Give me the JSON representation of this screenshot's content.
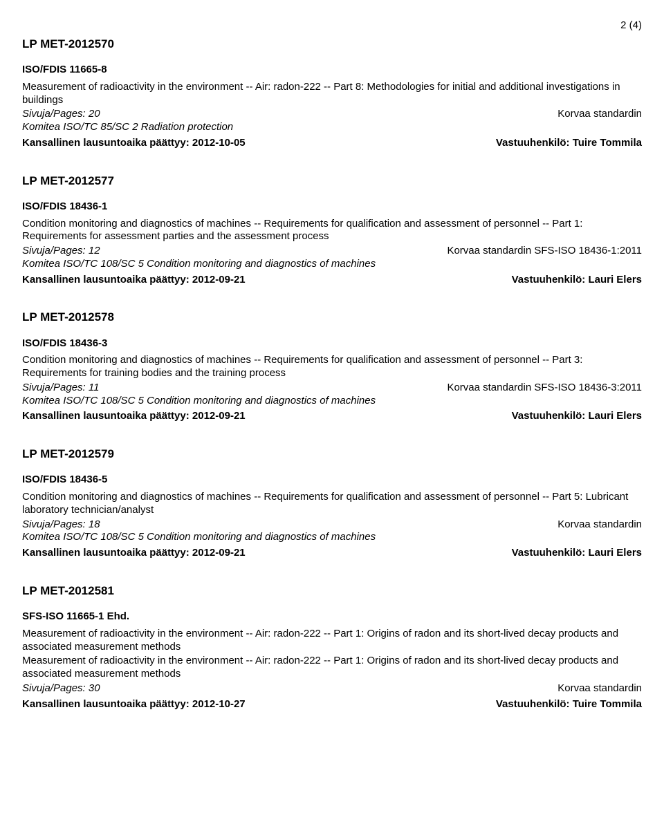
{
  "page_number": "2 (4)",
  "sections": [
    {
      "lp": "LP MET-2012570",
      "iso": "ISO/FDIS 11665-8",
      "desc": "Measurement of radioactivity in the environment -- Air: radon-222   -- Part 8: Methodologies for initial and additional investigations in buildings",
      "pages": "Sivuja/Pages: 20",
      "korvaa": "Korvaa standardin",
      "committee": "Komitea ISO/TC 85/SC 2 Radiation protection",
      "deadline": "Kansallinen lausuntoaika päättyy: 2012-10-05",
      "responsible": "Vastuuhenkilö: Tuire Tommila"
    },
    {
      "lp": "LP MET-2012577",
      "iso": "ISO/FDIS 18436-1",
      "desc": "Condition monitoring and diagnostics of machines -- Requirements for qualification and assessment of personnel   -- Part 1: Requirements for assessment parties and the assessment process",
      "pages": "Sivuja/Pages: 12",
      "korvaa": "Korvaa standardin SFS-ISO 18436-1:2011",
      "committee": "Komitea ISO/TC 108/SC 5 Condition monitoring and diagnostics of machines",
      "deadline": "Kansallinen lausuntoaika päättyy: 2012-09-21",
      "responsible": "Vastuuhenkilö: Lauri Elers"
    },
    {
      "lp": "LP MET-2012578",
      "iso": "ISO/FDIS 18436-3",
      "desc": "Condition monitoring and diagnostics of machines -- Requirements for qualification and assessment of personnel   -- Part 3: Requirements for training bodies and the training process",
      "pages": "Sivuja/Pages: 11",
      "korvaa": "Korvaa standardin SFS-ISO 18436-3:2011",
      "committee": "Komitea ISO/TC 108/SC 5 Condition monitoring and diagnostics of machines",
      "deadline": "Kansallinen lausuntoaika päättyy: 2012-09-21",
      "responsible": "Vastuuhenkilö: Lauri Elers"
    },
    {
      "lp": "LP MET-2012579",
      "iso": "ISO/FDIS 18436-5",
      "desc": "Condition monitoring and diagnostics of machines -- Requirements for qualification and assessment of personnel   -- Part 5: Lubricant laboratory technician/analyst",
      "pages": "Sivuja/Pages: 18",
      "korvaa": "Korvaa standardin",
      "committee": "Komitea ISO/TC 108/SC 5 Condition monitoring and diagnostics of machines",
      "deadline": "Kansallinen lausuntoaika päättyy: 2012-09-21",
      "responsible": "Vastuuhenkilö: Lauri Elers"
    },
    {
      "lp": "LP MET-2012581",
      "iso": "SFS-ISO 11665-1 Ehd.",
      "desc": "Measurement of radioactivity in the environment -- Air: radon-222   -- Part 1: Origins of radon and its short-lived decay products and associated measurement methods",
      "desc2": "Measurement of radioactivity in the environment -- Air: radon-222   -- Part 1: Origins of radon and its short-lived decay products and associated measurement methods",
      "pages": "Sivuja/Pages: 30",
      "korvaa": "Korvaa standardin",
      "committee": "",
      "deadline": "Kansallinen lausuntoaika päättyy: 2012-10-27",
      "responsible": "Vastuuhenkilö: Tuire Tommila"
    }
  ]
}
